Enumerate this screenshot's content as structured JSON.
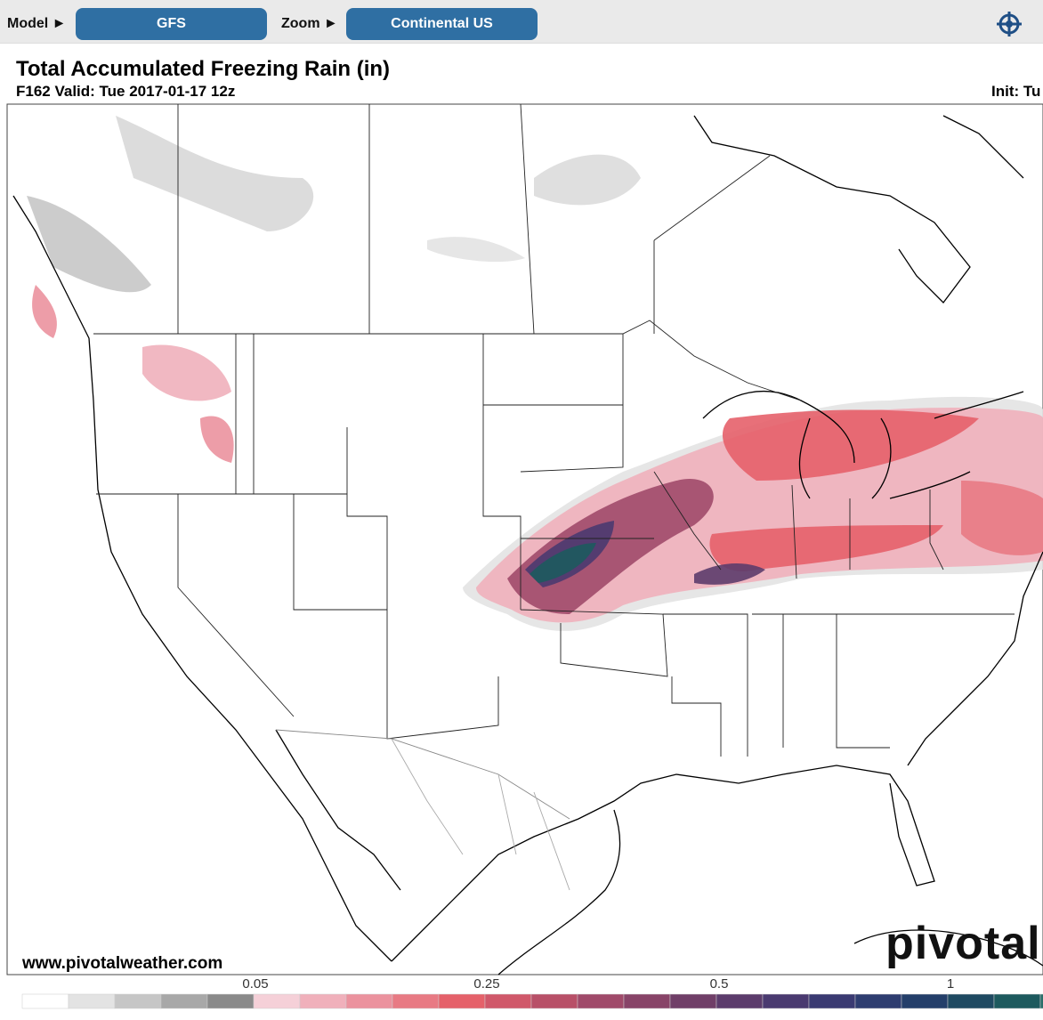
{
  "toolbar": {
    "model_label": "Model ►",
    "model_value": "GFS",
    "zoom_label": "Zoom ►",
    "zoom_value": "Continental US"
  },
  "header": {
    "title": "Total Accumulated Freezing Rain (in)",
    "subtitle": "F162 Valid: Tue 2017-01-17 12z",
    "init": "Init: Tu"
  },
  "map": {
    "credit": "www.pivotalweather.com",
    "logo": "pivotal"
  },
  "colorbar": {
    "labels": [
      "0.05",
      "0.25",
      "0.5",
      "1"
    ],
    "colors": [
      "#ffffff",
      "#e3e3e3",
      "#c6c6c6",
      "#a8a8a8",
      "#8a8a8a",
      "#f5d0d8",
      "#f0b0bb",
      "#eb929e",
      "#e87a84",
      "#e5616a",
      "#d0586a",
      "#b85068",
      "#a04a6a",
      "#884468",
      "#703f68",
      "#5c3c6c",
      "#4a3a70",
      "#3a3a72",
      "#2e3d70",
      "#243f6a",
      "#1f4a62",
      "#1d5a5e",
      "#2a6e6a"
    ]
  }
}
